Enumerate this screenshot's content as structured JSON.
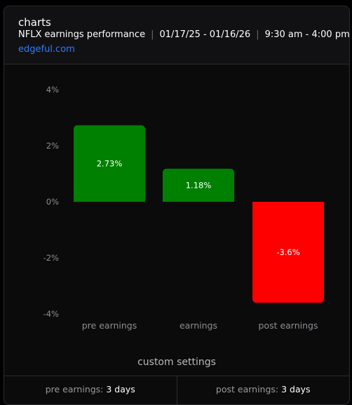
{
  "header": {
    "title": "charts",
    "subtitle_name": "NFLX earnings performance",
    "subtitle_dates": "01/17/25 - 01/16/26",
    "subtitle_hours": "9:30 am - 4:00 pm",
    "separator": "|",
    "link": "edgeful.com"
  },
  "colors": {
    "positive": "#008000",
    "negative": "#ff0000",
    "link": "#2f7bff"
  },
  "chart_data": {
    "type": "bar",
    "categories": [
      "pre earnings",
      "earnings",
      "post earnings"
    ],
    "values": [
      2.73,
      1.18,
      -3.6
    ],
    "data_labels": [
      "2.73%",
      "1.18%",
      "-3.6%"
    ],
    "y_ticks": [
      "4%",
      "2%",
      "0%",
      "-2%",
      "-4%"
    ],
    "ylim": [
      -4,
      4
    ],
    "grid": false,
    "title": "",
    "xlabel": "",
    "ylabel": ""
  },
  "footer": {
    "title": "custom settings",
    "pre_label": "pre earnings: ",
    "pre_value": "3 days",
    "post_label": "post earnings: ",
    "post_value": "3 days"
  }
}
